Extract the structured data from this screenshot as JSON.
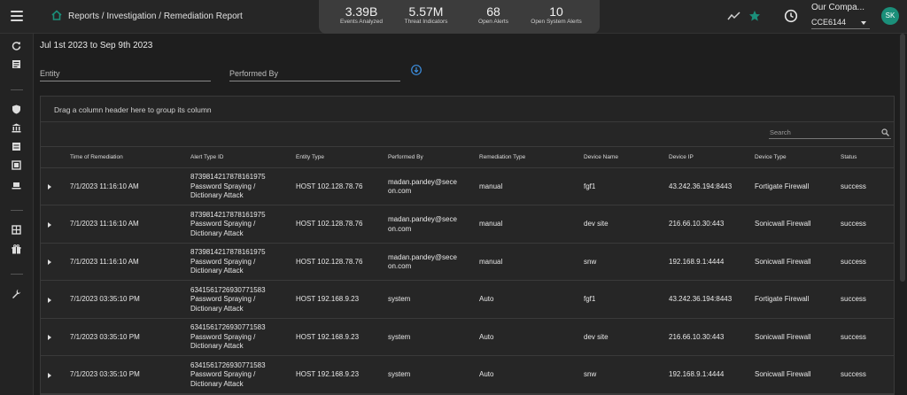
{
  "header": {
    "breadcrumb": "Reports / Investigation / Remediation Report",
    "stats": [
      {
        "value": "3.39B",
        "label": "Events Analyzed"
      },
      {
        "value": "5.57M",
        "label": "Threat Indicators"
      },
      {
        "value": "68",
        "label": "Open Alerts"
      },
      {
        "value": "10",
        "label": "Open System Alerts"
      }
    ],
    "company": "Our Compa...",
    "tenant": "CCE6144",
    "avatar_initials": "SK",
    "colors": {
      "accent": "#1b8f7a",
      "panel": "#3c3c3c"
    }
  },
  "filters": {
    "date_range": "Jul 1st 2023 to Sep 9th 2023",
    "entity_placeholder": "Entity",
    "performed_by_placeholder": "Performed By"
  },
  "grid": {
    "group_hint": "Drag a column header here to group its column",
    "search_placeholder": "Search",
    "columns": [
      "Time of Remediation",
      "Alert Type ID",
      "Entity Type",
      "Performed By",
      "Remediation Type",
      "Device Name",
      "Device IP",
      "Device Type",
      "Status"
    ],
    "rows": [
      {
        "time": "7/1/2023 11:16:10 AM",
        "alert_id": "87398142178781619​75",
        "alert_name_1": "Password Spraying /",
        "alert_name_2": "Dictionary Attack",
        "entity": "HOST 102.128.78.76",
        "performed_1": "madan.pandey@sece",
        "performed_2": "on.com",
        "rem_type": "manual",
        "device_name": "fgf1",
        "device_ip": "43.242.36.194:8443",
        "device_type": "Fortigate Firewall",
        "status": "success"
      },
      {
        "time": "7/1/2023 11:16:10 AM",
        "alert_id": "8739814217878161975",
        "alert_name_1": "Password Spraying /",
        "alert_name_2": "Dictionary Attack",
        "entity": "HOST 102.128.78.76",
        "performed_1": "madan.pandey@sece",
        "performed_2": "on.com",
        "rem_type": "manual",
        "device_name": "dev site",
        "device_ip": "216.66.10.30:443",
        "device_type": "Sonicwall Firewall",
        "status": "success"
      },
      {
        "time": "7/1/2023 11:16:10 AM",
        "alert_id": "8739814217878161975",
        "alert_name_1": "Password Spraying /",
        "alert_name_2": "Dictionary Attack",
        "entity": "HOST 102.128.78.76",
        "performed_1": "madan.pandey@sece",
        "performed_2": "on.com",
        "rem_type": "manual",
        "device_name": "snw",
        "device_ip": "192.168.9.1:4444",
        "device_type": "Sonicwall Firewall",
        "status": "success"
      },
      {
        "time": "7/1/2023 03:35:10 PM",
        "alert_id": "6341561726930771583",
        "alert_name_1": "Password Spraying /",
        "alert_name_2": "Dictionary Attack",
        "entity": "HOST 192.168.9.23",
        "performed_1": "system",
        "performed_2": "",
        "rem_type": "Auto",
        "device_name": "fgf1",
        "device_ip": "43.242.36.194:8443",
        "device_type": "Fortigate Firewall",
        "status": "success"
      },
      {
        "time": "7/1/2023 03:35:10 PM",
        "alert_id": "6341561726930771583",
        "alert_name_1": "Password Spraying /",
        "alert_name_2": "Dictionary Attack",
        "entity": "HOST 192.168.9.23",
        "performed_1": "system",
        "performed_2": "",
        "rem_type": "Auto",
        "device_name": "dev site",
        "device_ip": "216.66.10.30:443",
        "device_type": "Sonicwall Firewall",
        "status": "success"
      },
      {
        "time": "7/1/2023 03:35:10 PM",
        "alert_id": "6341561726930771583",
        "alert_name_1": "Password Spraying /",
        "alert_name_2": "Dictionary Attack",
        "entity": "HOST 192.168.9.23",
        "performed_1": "system",
        "performed_2": "",
        "rem_type": "Auto",
        "device_name": "snw",
        "device_ip": "192.168.9.1:4444",
        "device_type": "Sonicwall Firewall",
        "status": "success"
      }
    ]
  }
}
